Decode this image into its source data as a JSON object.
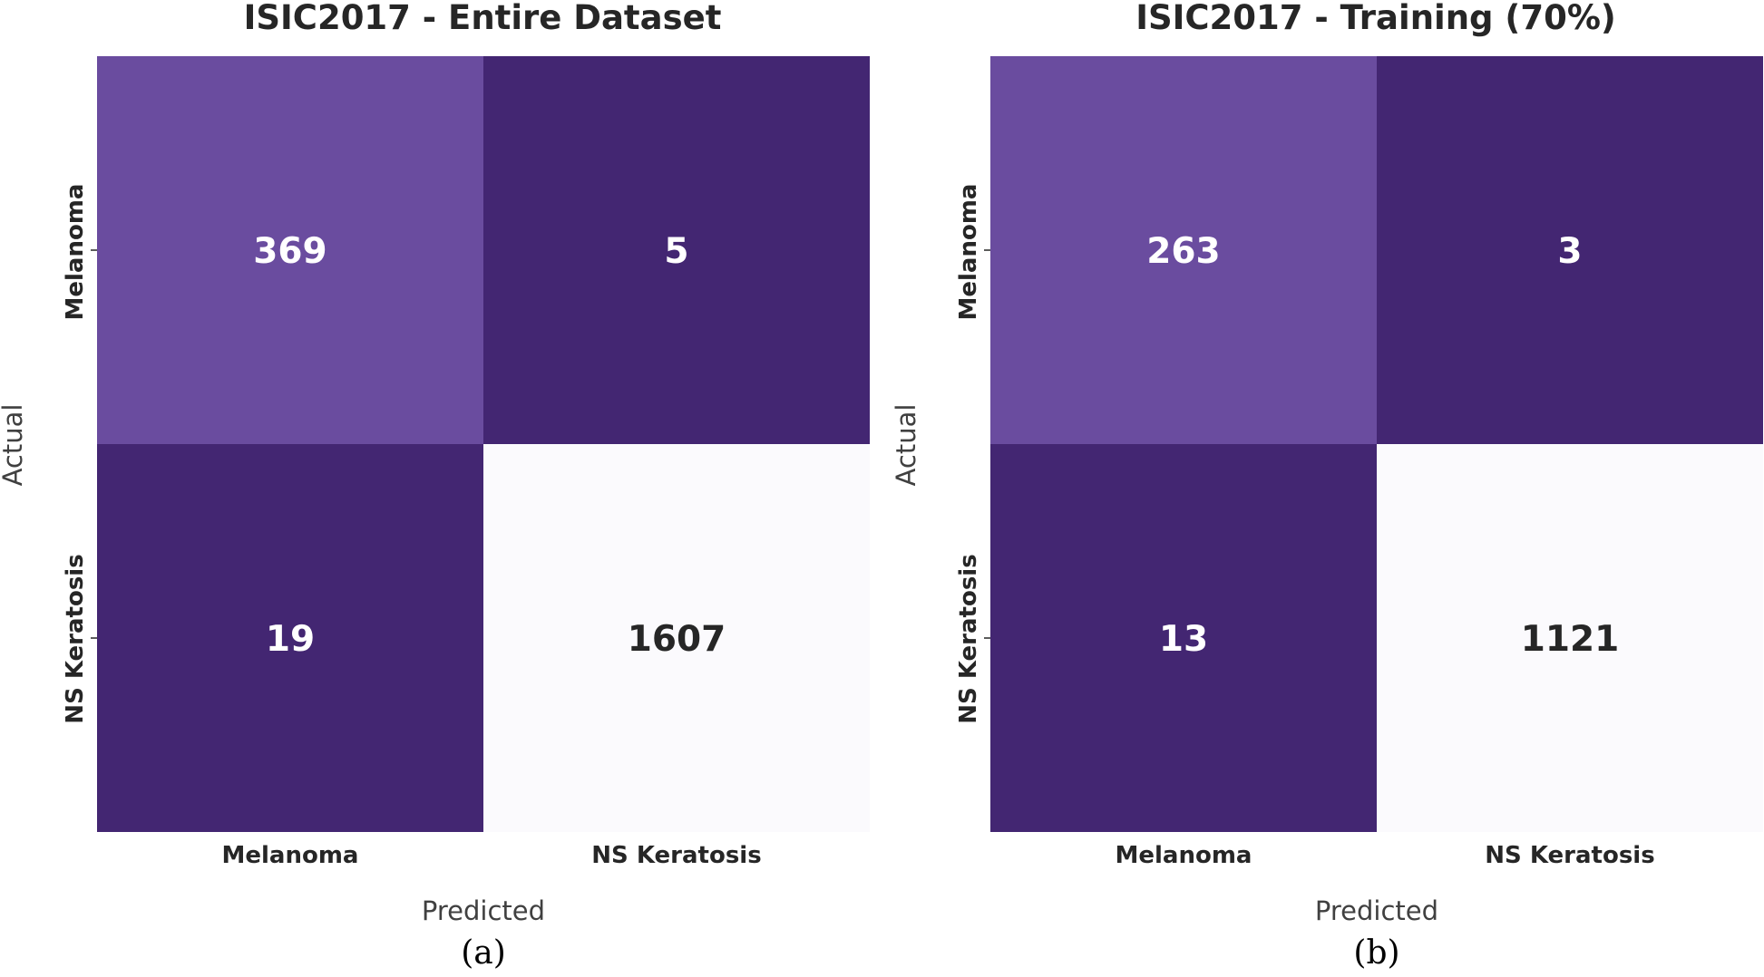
{
  "colors": {
    "high": "#fbfafd",
    "mid": "#6a4c9f",
    "low": "#432672",
    "text_light": "#ffffff",
    "text_dark": "#262626"
  },
  "chart_data": [
    {
      "type": "heatmap",
      "title": "ISIC2017 - Entire Dataset",
      "xlabel": "Predicted",
      "ylabel": "Actual",
      "x_categories": [
        "Melanoma",
        "NS Keratosis"
      ],
      "y_categories": [
        "Melanoma",
        "NS Keratosis"
      ],
      "values": [
        [
          369,
          5
        ],
        [
          19,
          1607
        ]
      ],
      "caption": "(a)",
      "grid": false
    },
    {
      "type": "heatmap",
      "title": "ISIC2017 - Training (70%)",
      "xlabel": "Predicted",
      "ylabel": "Actual",
      "x_categories": [
        "Melanoma",
        "NS Keratosis"
      ],
      "y_categories": [
        "Melanoma",
        "NS Keratosis"
      ],
      "values": [
        [
          263,
          3
        ],
        [
          13,
          1121
        ]
      ],
      "caption": "(b)",
      "grid": false
    }
  ]
}
